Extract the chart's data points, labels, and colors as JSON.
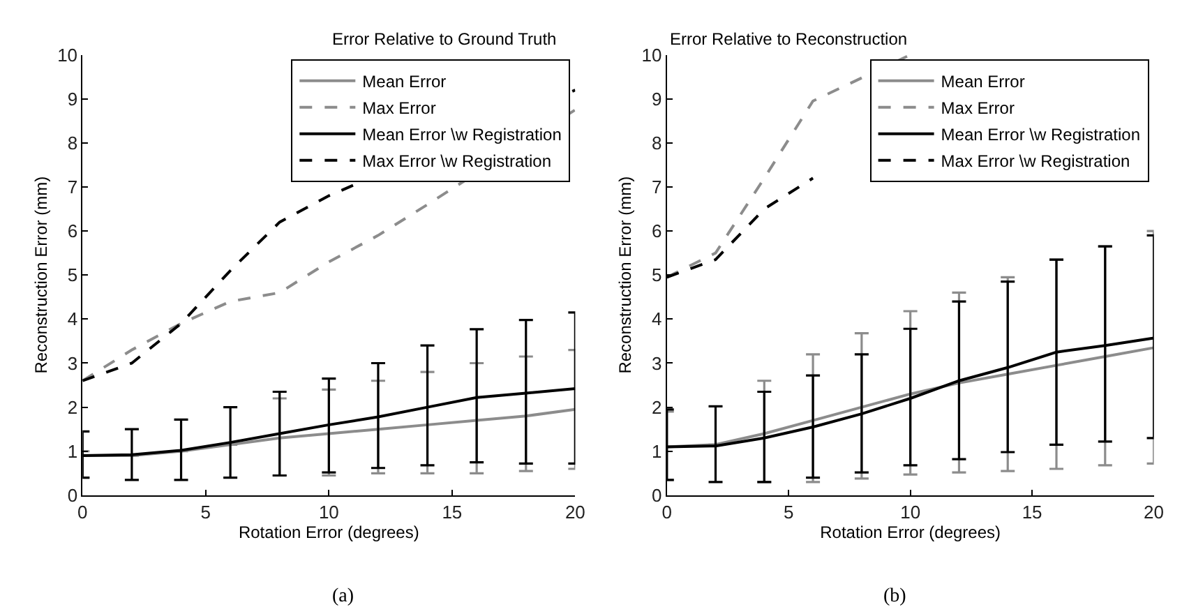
{
  "chart_data": [
    {
      "type": "line",
      "title": "Error Relative to Ground Truth",
      "xlabel": "Rotation Error (degrees)",
      "ylabel": "Reconstruction Error (mm)",
      "x": [
        0,
        2,
        4,
        6,
        8,
        10,
        12,
        14,
        16,
        18,
        20
      ],
      "xlim": [
        0,
        20
      ],
      "xticks": [
        0,
        5,
        10,
        15,
        20
      ],
      "ylim": [
        0,
        10
      ],
      "yticks": [
        0,
        1,
        2,
        3,
        4,
        5,
        6,
        7,
        8,
        9,
        10
      ],
      "grid": false,
      "legend": "top right",
      "marker": "none",
      "series": [
        {
          "name": "Mean Error",
          "color": "#8c8c8c",
          "line_style": "solid",
          "values": [
            0.9,
            0.9,
            1.0,
            1.15,
            1.3,
            1.4,
            1.5,
            1.6,
            1.7,
            1.8,
            1.95
          ],
          "errors": [
            [
              0.4,
              1.0
            ],
            null,
            null,
            null,
            [
              0.45,
              2.2
            ],
            [
              0.45,
              2.4
            ],
            [
              0.5,
              2.6
            ],
            [
              0.5,
              2.8
            ],
            [
              0.5,
              3.0
            ],
            [
              0.55,
              3.15
            ],
            [
              0.6,
              3.3
            ]
          ]
        },
        {
          "name": "Max Error",
          "color": "#8c8c8c",
          "line_style": "dashed",
          "values": [
            2.6,
            3.3,
            3.9,
            4.4,
            4.6,
            5.3,
            5.9,
            6.6,
            null,
            null,
            8.75
          ]
        },
        {
          "name": "Mean Error \\w Registration",
          "color": "#000000",
          "line_style": "solid",
          "values": [
            0.9,
            0.92,
            1.02,
            1.2,
            1.4,
            1.6,
            1.78,
            2.0,
            2.22,
            2.32,
            2.42
          ],
          "errors": [
            [
              0.4,
              1.45
            ],
            [
              0.35,
              1.5
            ],
            [
              0.35,
              1.72
            ],
            [
              0.4,
              2.0
            ],
            [
              0.45,
              2.35
            ],
            [
              0.52,
              2.65
            ],
            [
              0.62,
              3.0
            ],
            [
              0.68,
              3.4
            ],
            [
              0.75,
              3.77
            ],
            [
              0.72,
              3.98
            ],
            [
              0.72,
              4.15
            ]
          ]
        },
        {
          "name": "Max Error \\w Registration",
          "color": "#000000",
          "line_style": "dashed",
          "values": [
            2.6,
            3.0,
            3.9,
            5.1,
            6.2,
            6.8,
            null,
            null,
            null,
            null,
            9.2
          ]
        }
      ],
      "annotations": [
        "(a)"
      ]
    },
    {
      "type": "line",
      "title": "Error Relative to Reconstruction",
      "xlabel": "Rotation Error (degrees)",
      "ylabel": "Reconstruction Error (mm)",
      "x": [
        0,
        2,
        4,
        6,
        8,
        10,
        12,
        14,
        16,
        18,
        20
      ],
      "xlim": [
        0,
        20
      ],
      "xticks": [
        0,
        5,
        10,
        15,
        20
      ],
      "ylim": [
        0,
        10
      ],
      "yticks": [
        0,
        1,
        2,
        3,
        4,
        5,
        6,
        7,
        8,
        9,
        10
      ],
      "grid": false,
      "legend": "top right",
      "marker": "none",
      "series": [
        {
          "name": "Mean Error",
          "color": "#8c8c8c",
          "line_style": "solid",
          "values": [
            1.1,
            1.15,
            1.4,
            1.7,
            2.0,
            2.3,
            2.55,
            2.75,
            2.95,
            3.15,
            3.35
          ],
          "errors": [
            [
              0.35,
              1.9
            ],
            null,
            [
              0.3,
              2.6
            ],
            [
              0.3,
              3.2
            ],
            [
              0.38,
              3.68
            ],
            [
              0.47,
              4.18
            ],
            [
              0.52,
              4.6
            ],
            [
              0.55,
              4.95
            ],
            [
              0.6,
              5.35
            ],
            [
              0.68,
              5.65
            ],
            [
              0.72,
              6.0
            ]
          ]
        },
        {
          "name": "Max Error",
          "color": "#8c8c8c",
          "line_style": "dashed",
          "values": [
            4.95,
            5.5,
            7.2,
            8.95,
            null,
            10.0,
            null,
            null,
            null,
            null,
            null
          ]
        },
        {
          "name": "Mean Error \\w Registration",
          "color": "#000000",
          "line_style": "solid",
          "values": [
            1.1,
            1.12,
            1.3,
            1.55,
            1.85,
            2.2,
            2.6,
            2.9,
            3.25,
            3.4,
            3.57
          ],
          "errors": [
            [
              0.35,
              1.95
            ],
            [
              0.3,
              2.02
            ],
            [
              0.3,
              2.35
            ],
            [
              0.4,
              2.72
            ],
            [
              0.52,
              3.2
            ],
            [
              0.68,
              3.78
            ],
            [
              0.82,
              4.4
            ],
            [
              0.98,
              4.85
            ],
            [
              1.15,
              5.35
            ],
            [
              1.22,
              5.65
            ],
            [
              1.3,
              5.9
            ]
          ]
        },
        {
          "name": "Max Error \\w Registration",
          "color": "#000000",
          "line_style": "dashed",
          "values": [
            4.95,
            5.35,
            6.5,
            7.2,
            null,
            null,
            null,
            null,
            null,
            null,
            null
          ]
        }
      ],
      "annotations": [
        "(b)"
      ]
    }
  ]
}
